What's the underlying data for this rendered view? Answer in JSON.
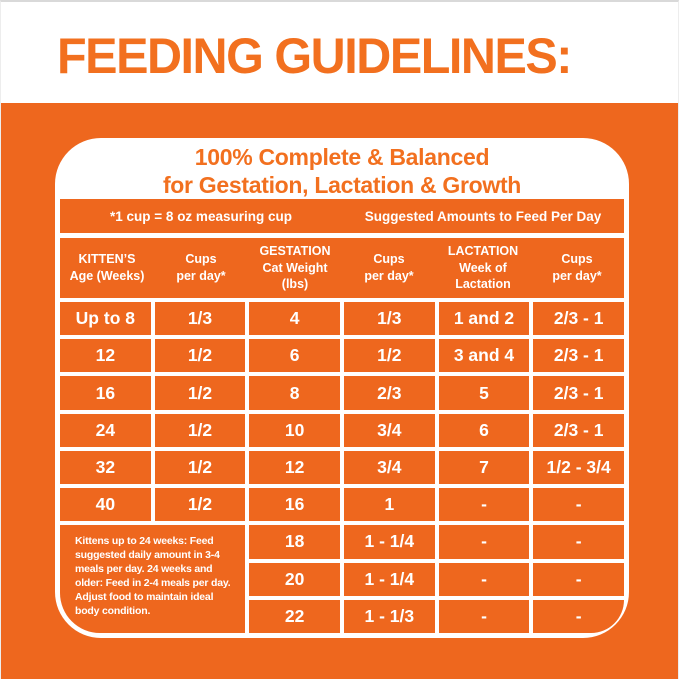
{
  "colors": {
    "orange_background": "#EE671E",
    "heading_orange": "#F2701F",
    "text_white": "#FFFFFF",
    "top_border_gray": "#D9D9D9"
  },
  "page": {
    "title": "FEEDING GUIDELINES:"
  },
  "card": {
    "title_line1": "100% Complete & Balanced",
    "title_line2": "for Gestation, Lactation & Growth",
    "band": {
      "left": "*1 cup = 8 oz measuring cup",
      "right": "Suggested Amounts to Feed Per Day"
    },
    "table": {
      "headers": [
        [
          "KITTEN’S",
          "Age (Weeks)"
        ],
        [
          "Cups",
          "per day*"
        ],
        [
          "GESTATION",
          "Cat Weight (lbs)"
        ],
        [
          "Cups",
          "per day*"
        ],
        [
          "LACTATION",
          "Week of",
          "Lactation"
        ],
        [
          "Cups",
          "per day*"
        ]
      ],
      "rows": [
        [
          "Up to 8",
          "1/3",
          "4",
          "1/3",
          "1 and 2",
          "2/3 - 1"
        ],
        [
          "12",
          "1/2",
          "6",
          "1/2",
          "3 and 4",
          "2/3 - 1"
        ],
        [
          "16",
          "1/2",
          "8",
          "2/3",
          "5",
          "2/3 - 1"
        ],
        [
          "24",
          "1/2",
          "10",
          "3/4",
          "6",
          "2/3 - 1"
        ],
        [
          "32",
          "1/2",
          "12",
          "3/4",
          "7",
          "1/2 - 3/4"
        ],
        [
          "40",
          "1/2",
          "16",
          "1",
          "-",
          "-"
        ]
      ],
      "bottom_rows": [
        [
          "18",
          "1 - 1/4",
          "-",
          "-"
        ],
        [
          "20",
          "1 - 1/4",
          "-",
          "-"
        ],
        [
          "22",
          "1 - 1/3",
          "-",
          "-"
        ]
      ],
      "note": "Kittens up to 24 weeks: Feed suggested daily amount in 3-4 meals per day. 24 weeks and older: Feed in 2-4 meals per day. Adjust food to maintain ideal body condition."
    }
  }
}
